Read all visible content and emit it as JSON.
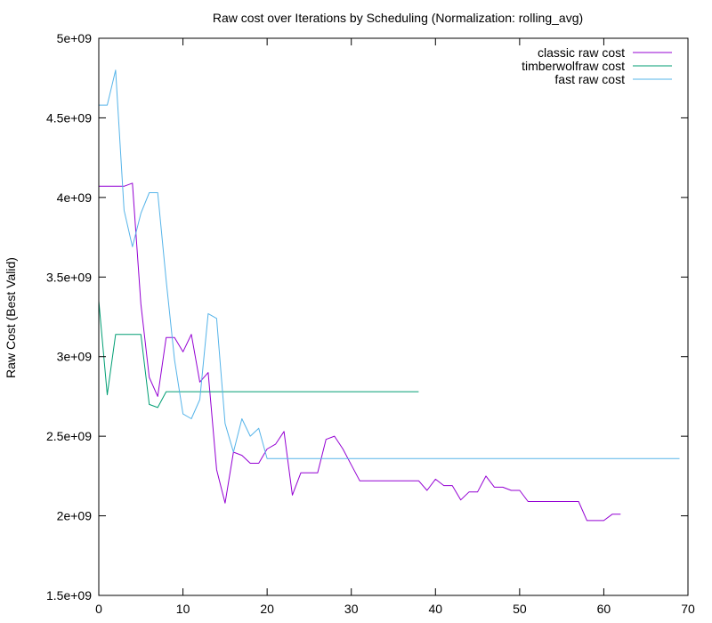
{
  "chart_data": {
    "type": "line",
    "title": "Raw cost over Iterations by Scheduling (Normalization: rolling_avg)",
    "xlabel": "",
    "ylabel": "Raw Cost (Best Valid)",
    "xlim": [
      0,
      70
    ],
    "ylim": [
      1500000000,
      5000000000
    ],
    "x_ticks": [
      "0",
      "10",
      "20",
      "30",
      "40",
      "50",
      "60",
      "70"
    ],
    "y_ticks": [
      "1.5e+09",
      "2e+09",
      "2.5e+09",
      "3e+09",
      "3.5e+09",
      "4e+09",
      "4.5e+09",
      "5e+09"
    ],
    "grid": false,
    "legend_position": "top-right",
    "series": [
      {
        "name": "classic raw cost",
        "color": "#9400d3",
        "x": [
          0,
          1,
          2,
          3,
          4,
          5,
          6,
          7,
          8,
          9,
          10,
          11,
          12,
          13,
          14,
          15,
          16,
          17,
          18,
          19,
          20,
          21,
          22,
          23,
          24,
          25,
          26,
          27,
          28,
          29,
          30,
          31,
          32,
          33,
          34,
          35,
          36,
          37,
          38,
          39,
          40,
          41,
          42,
          43,
          44,
          45,
          46,
          47,
          48,
          49,
          50,
          51,
          52,
          53,
          54,
          55,
          56,
          57,
          58,
          59,
          60,
          61,
          62
        ],
        "y": [
          4070000000,
          4070000000,
          4070000000,
          4070000000,
          4090000000,
          3330000000,
          2870000000,
          2750000000,
          3120000000,
          3120000000,
          3030000000,
          3140000000,
          2840000000,
          2900000000,
          2290000000,
          2080000000,
          2400000000,
          2380000000,
          2330000000,
          2330000000,
          2420000000,
          2450000000,
          2530000000,
          2130000000,
          2270000000,
          2270000000,
          2270000000,
          2480000000,
          2500000000,
          2420000000,
          2320000000,
          2220000000,
          2220000000,
          2220000000,
          2220000000,
          2220000000,
          2220000000,
          2220000000,
          2220000000,
          2160000000,
          2230000000,
          2190000000,
          2190000000,
          2100000000,
          2150000000,
          2150000000,
          2250000000,
          2180000000,
          2180000000,
          2160000000,
          2160000000,
          2090000000,
          2090000000,
          2090000000,
          2090000000,
          2090000000,
          2090000000,
          2090000000,
          1970000000,
          1970000000,
          1970000000,
          2010000000,
          2010000000
        ]
      },
      {
        "name": "timberwolfraw cost",
        "color": "#009e73",
        "x": [
          0,
          1,
          2,
          3,
          4,
          5,
          6,
          7,
          8,
          38
        ],
        "y": [
          3350000000,
          2760000000,
          3140000000,
          3140000000,
          3140000000,
          3140000000,
          2700000000,
          2680000000,
          2780000000,
          2780000000
        ]
      },
      {
        "name": "fast raw cost",
        "color": "#56b4e9",
        "x": [
          0,
          1,
          2,
          3,
          4,
          5,
          6,
          7,
          8,
          9,
          10,
          11,
          12,
          13,
          14,
          15,
          16,
          17,
          18,
          19,
          20,
          69
        ],
        "y": [
          4580000000,
          4580000000,
          4800000000,
          3920000000,
          3690000000,
          3900000000,
          4030000000,
          4030000000,
          3480000000,
          2980000000,
          2640000000,
          2610000000,
          2730000000,
          3270000000,
          3240000000,
          2580000000,
          2400000000,
          2610000000,
          2500000000,
          2550000000,
          2360000000,
          2360000000
        ]
      }
    ]
  }
}
